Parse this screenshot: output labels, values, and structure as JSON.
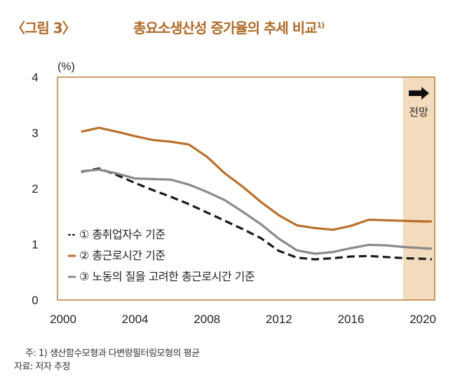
{
  "figure": {
    "label": "〈그림 3〉",
    "title": "총요소생산성 증가율의 추세 비교",
    "title_sup": "1)"
  },
  "notes": {
    "note": "주: 1) 생산함수모형과 다변량필터링모형의 평균",
    "source": "자료: 저자 추정"
  },
  "colors": {
    "title": "#b06a28",
    "axis": "#c07a38",
    "forecast_band": "#f2dcbd",
    "series_1": "#1a1a1a",
    "series_2": "#b8702c",
    "series_3": "#8a8a8a"
  },
  "chart_data": {
    "type": "line",
    "title": "총요소생산성 증가율의 추세 비교",
    "xlabel": "",
    "ylabel": "(%)",
    "xlim": [
      2000,
      2020.7
    ],
    "ylim": [
      0,
      4
    ],
    "xticks": [
      2000,
      2004,
      2008,
      2012,
      2016,
      2020
    ],
    "xtick_labels": [
      "2000",
      "2004",
      "2008",
      "2012",
      "2016",
      "2020"
    ],
    "yticks": [
      0,
      1,
      2,
      3,
      4
    ],
    "ytick_labels": [
      "0",
      "1",
      "2",
      "3",
      "4"
    ],
    "grid": false,
    "legend_position": "bottom-left",
    "forecast_region": {
      "from": 2018.9,
      "to": 2020.7,
      "label": "전망",
      "icon": "right-arrow-icon"
    },
    "series": [
      {
        "name": "① 총취업자수 기준",
        "legend_marker": "--",
        "style": "dashed",
        "x": [
          2001,
          2002,
          2003,
          2004,
          2005,
          2006,
          2007,
          2008,
          2009,
          2010,
          2011,
          2012,
          2013,
          2014,
          2015,
          2016,
          2017,
          2018,
          2019,
          2020,
          2020.5
        ],
        "values": [
          2.3,
          2.36,
          2.24,
          2.1,
          1.97,
          1.85,
          1.72,
          1.57,
          1.42,
          1.27,
          1.11,
          0.88,
          0.76,
          0.73,
          0.75,
          0.78,
          0.79,
          0.77,
          0.75,
          0.74,
          0.73
        ]
      },
      {
        "name": "② 총근로시간 기준",
        "legend_marker": "–",
        "style": "solid",
        "x": [
          2001,
          2002,
          2003,
          2004,
          2005,
          2006,
          2007,
          2008,
          2009,
          2010,
          2011,
          2012,
          2013,
          2014,
          2015,
          2016,
          2017,
          2018,
          2019,
          2020,
          2020.5
        ],
        "values": [
          3.02,
          3.09,
          3.02,
          2.94,
          2.87,
          2.84,
          2.79,
          2.57,
          2.27,
          2.03,
          1.76,
          1.52,
          1.34,
          1.29,
          1.26,
          1.33,
          1.44,
          1.43,
          1.42,
          1.41,
          1.41
        ]
      },
      {
        "name": "③ 노동의 질을 고려한 총근로시간 기준",
        "legend_marker": "–",
        "style": "solid",
        "x": [
          2001,
          2002,
          2003,
          2004,
          2005,
          2006,
          2007,
          2008,
          2009,
          2010,
          2011,
          2012,
          2013,
          2014,
          2015,
          2016,
          2017,
          2018,
          2019,
          2020,
          2020.5
        ],
        "values": [
          2.31,
          2.34,
          2.27,
          2.18,
          2.17,
          2.16,
          2.07,
          1.94,
          1.79,
          1.58,
          1.36,
          1.1,
          0.89,
          0.83,
          0.86,
          0.93,
          0.99,
          0.98,
          0.95,
          0.93,
          0.92
        ]
      }
    ]
  }
}
